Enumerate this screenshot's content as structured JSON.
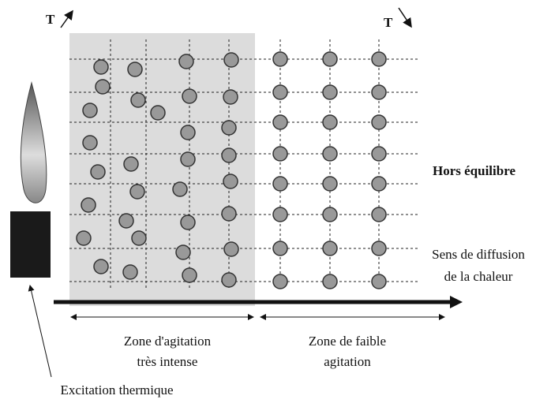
{
  "labels": {
    "temp_left": "T",
    "temp_right": "T",
    "state": "Hors équilibre",
    "diffusion": [
      "Sens de diffusion",
      "de la chaleur"
    ],
    "zone_intense": [
      "Zone d'agitation",
      "très intense"
    ],
    "zone_weak": [
      "Zone de faible",
      "agitation"
    ],
    "excitation": "Excitation thermique"
  }
}
